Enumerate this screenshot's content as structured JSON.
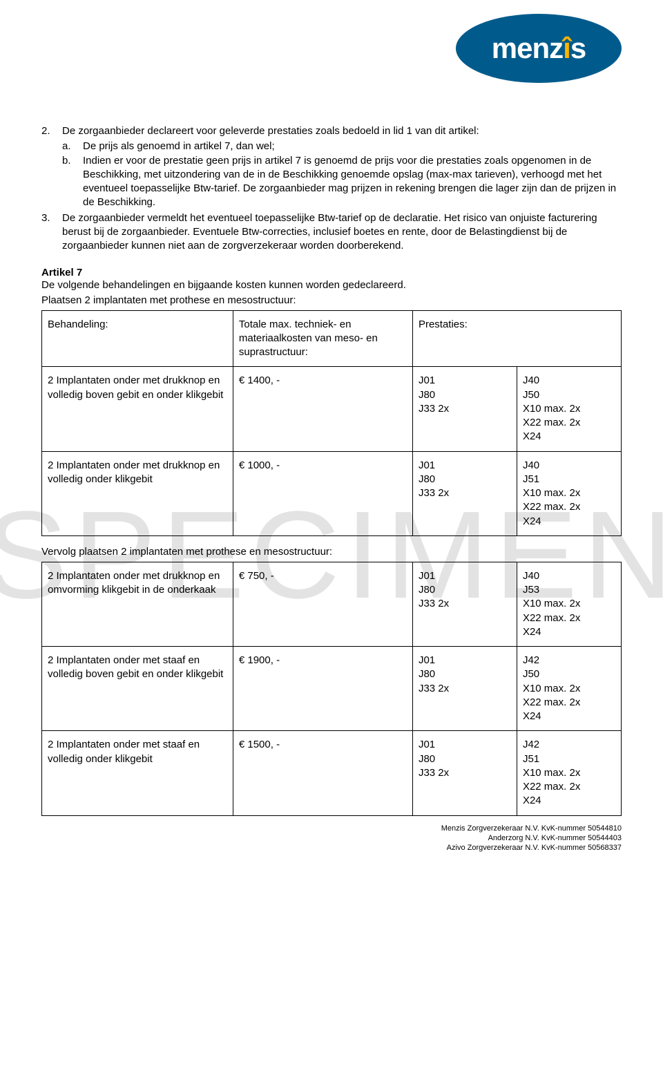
{
  "logo": {
    "text": "menz",
    "suffix": "s",
    "dot_color": "#ffb300",
    "bg_color": "#005b8c",
    "text_color": "#ffffff"
  },
  "watermark": "SPECIMEN",
  "list": {
    "item2": {
      "num": "2.",
      "intro": "De zorgaanbieder declareert voor geleverde prestaties zoals bedoeld in lid 1 van dit artikel:",
      "a": {
        "num": "a.",
        "text": "De prijs als genoemd in artikel 7, dan wel;"
      },
      "b": {
        "num": "b.",
        "text": "Indien er voor de prestatie geen prijs in artikel 7 is genoemd de prijs voor die prestaties zoals opgenomen in de Beschikking, met uitzondering van de in de Beschikking genoemde opslag (max-max tarieven), verhoogd met het eventueel toepasselijke Btw-tarief. De zorgaanbieder mag prijzen in rekening brengen die lager zijn dan de prijzen in de Beschikking."
      }
    },
    "item3": {
      "num": "3.",
      "text": "De zorgaanbieder vermeldt het eventueel toepasselijke Btw-tarief op de declaratie. Het risico van onjuiste facturering berust bij de zorgaanbieder. Eventuele Btw-correcties, inclusief boetes en rente, door de Belastingdienst bij de zorgaanbieder kunnen niet aan de zorgverzekeraar worden doorberekend."
    }
  },
  "article7": {
    "heading": "Artikel 7",
    "intro": "De volgende behandelingen en bijgaande kosten kunnen worden gedeclareerd.",
    "caption1": "Plaatsen 2 implantaten met prothese en mesostructuur:",
    "caption2": "Vervolg plaatsen 2 implantaten met prothese en mesostructuur:"
  },
  "table1": {
    "headers": {
      "behandeling": "Behandeling:",
      "totale": "Totale max. techniek- en materiaalkosten van meso- en suprastructuur:",
      "prestaties": "Prestaties:"
    },
    "rows": [
      {
        "behandeling": "2 Implantaten onder met drukknop en volledig boven gebit en onder klikgebit",
        "totale": "€ 1400, -",
        "p1": "J01\nJ80\nJ33 2x",
        "p2": "J40\nJ50\nX10 max. 2x\nX22 max. 2x\nX24"
      },
      {
        "behandeling": "2 Implantaten onder met drukknop en volledig onder klikgebit",
        "totale": "€ 1000, -",
        "p1": "J01\nJ80\nJ33 2x",
        "p2": "J40\nJ51\nX10 max. 2x\nX22 max. 2x\nX24"
      }
    ]
  },
  "table2": {
    "rows": [
      {
        "behandeling": "2 Implantaten onder met drukknop en omvorming klikgebit in de onderkaak",
        "totale": "€ 750, -",
        "p1": "J01\nJ80\nJ33 2x",
        "p2": "J40\nJ53\nX10 max. 2x\nX22 max. 2x\nX24"
      },
      {
        "behandeling": "2 Implantaten onder met staaf en volledig boven gebit en onder klikgebit",
        "totale": "€ 1900, -",
        "p1": "J01\nJ80\nJ33 2x",
        "p2": "J42\nJ50\nX10 max. 2x\nX22 max. 2x\nX24"
      },
      {
        "behandeling": "2 Implantaten onder met staaf en volledig onder klikgebit",
        "totale": "€ 1500, -",
        "p1": "J01\nJ80\nJ33 2x",
        "p2": "J42\nJ51\nX10 max. 2x\nX22 max. 2x\nX24"
      }
    ]
  },
  "footer": {
    "line1": "Menzis Zorgverzekeraar N.V. KvK-nummer 50544810",
    "line2": "Anderzorg N.V. KvK-nummer 50544403",
    "line3": "Azivo Zorgverzekeraar N.V. KvK-nummer 50568337"
  }
}
